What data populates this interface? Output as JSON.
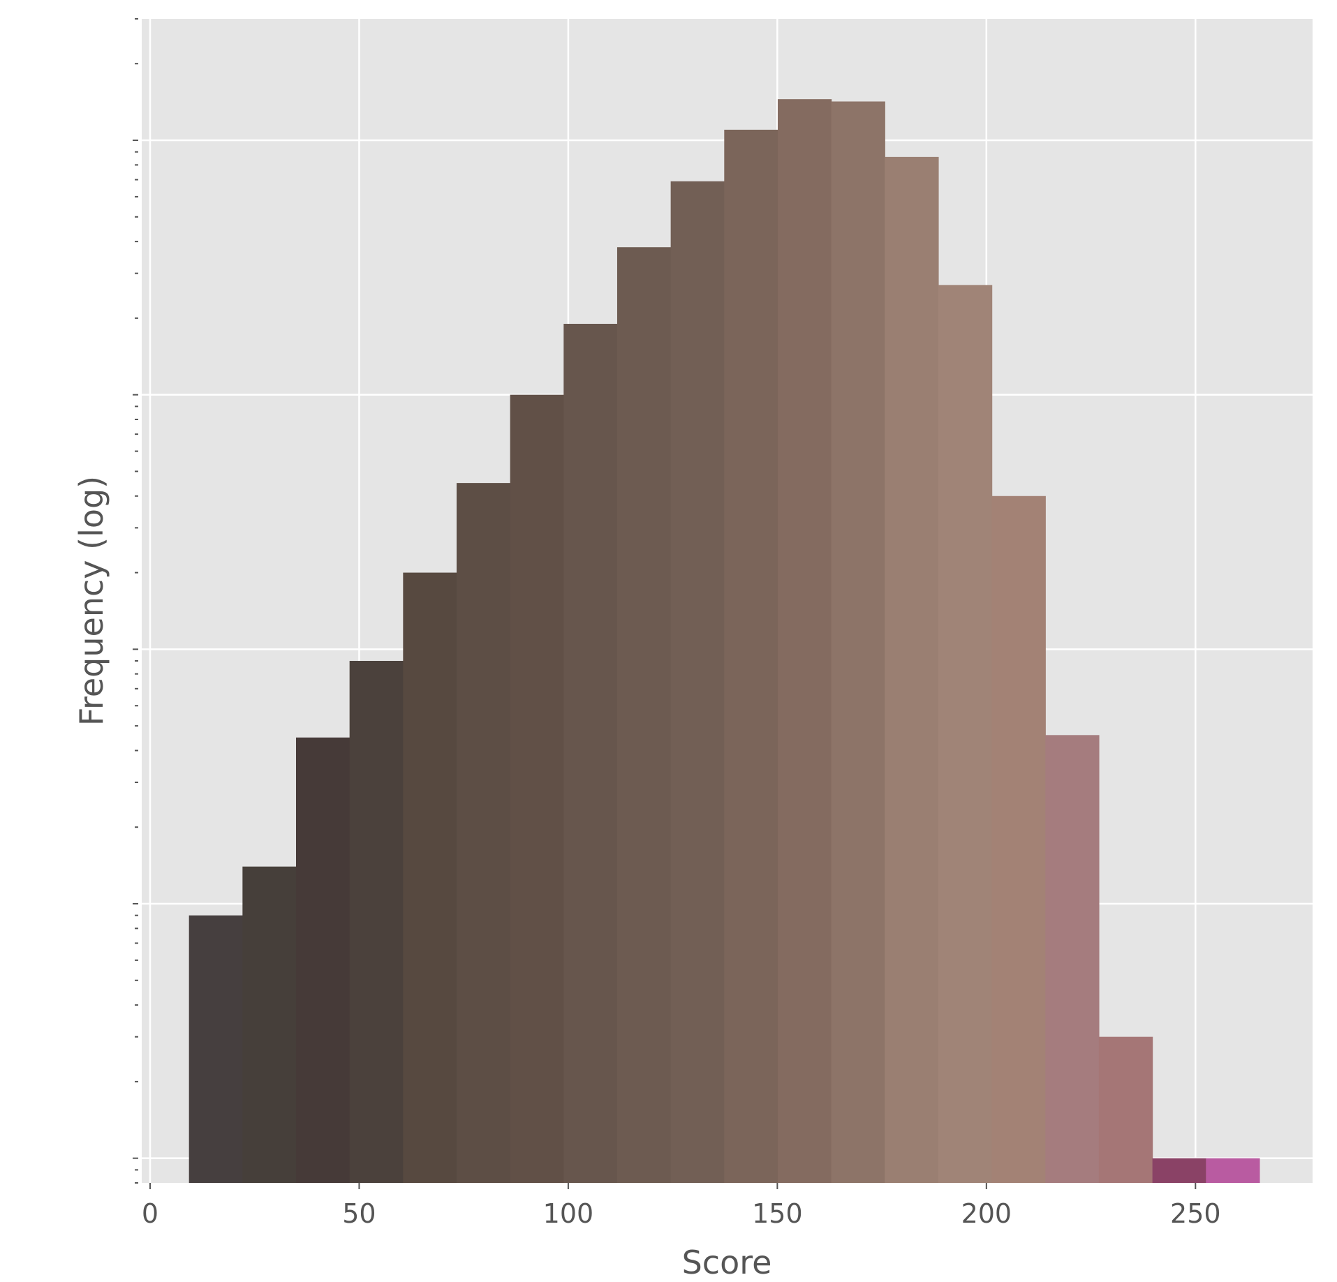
{
  "chart_data": {
    "type": "bar",
    "subtype": "histogram",
    "xlabel": "Score",
    "ylabel": "Frequency (log)",
    "y_scale": "log",
    "xlim": [
      -2,
      278
    ],
    "ylim": [
      0.8,
      30000
    ],
    "x_ticks": [
      0,
      50,
      100,
      150,
      200,
      250
    ],
    "y_major_ticks": [
      1,
      10,
      100,
      1000,
      10000
    ],
    "grid": true,
    "bin_width": 12.8,
    "bins": [
      {
        "start": 9.3,
        "count": 9,
        "color": "#463f3f"
      },
      {
        "start": 22.1,
        "count": 14,
        "color": "#463f3a"
      },
      {
        "start": 34.9,
        "count": 45,
        "color": "#463a38"
      },
      {
        "start": 47.7,
        "count": 90,
        "color": "#4b413c"
      },
      {
        "start": 60.5,
        "count": 200,
        "color": "#574940"
      },
      {
        "start": 73.3,
        "count": 450,
        "color": "#5d4e45"
      },
      {
        "start": 86.1,
        "count": 1000,
        "color": "#615047"
      },
      {
        "start": 98.9,
        "count": 1900,
        "color": "#67564d"
      },
      {
        "start": 111.7,
        "count": 3800,
        "color": "#6d5b51"
      },
      {
        "start": 124.5,
        "count": 6900,
        "color": "#725f55"
      },
      {
        "start": 137.3,
        "count": 11000,
        "color": "#7b655a"
      },
      {
        "start": 150.1,
        "count": 14500,
        "color": "#846b60"
      },
      {
        "start": 162.9,
        "count": 14200,
        "color": "#8d7468"
      },
      {
        "start": 175.7,
        "count": 8600,
        "color": "#9a7f72"
      },
      {
        "start": 188.5,
        "count": 2700,
        "color": "#a08477"
      },
      {
        "start": 201.3,
        "count": 400,
        "color": "#a38275"
      },
      {
        "start": 214.1,
        "count": 46,
        "color": "#a57c7e"
      },
      {
        "start": 226.9,
        "count": 3,
        "color": "#a57676"
      },
      {
        "start": 239.7,
        "count": 1,
        "color": "#8a4266"
      },
      {
        "start": 252.5,
        "count": 1,
        "color": "#b95ba1"
      }
    ]
  }
}
